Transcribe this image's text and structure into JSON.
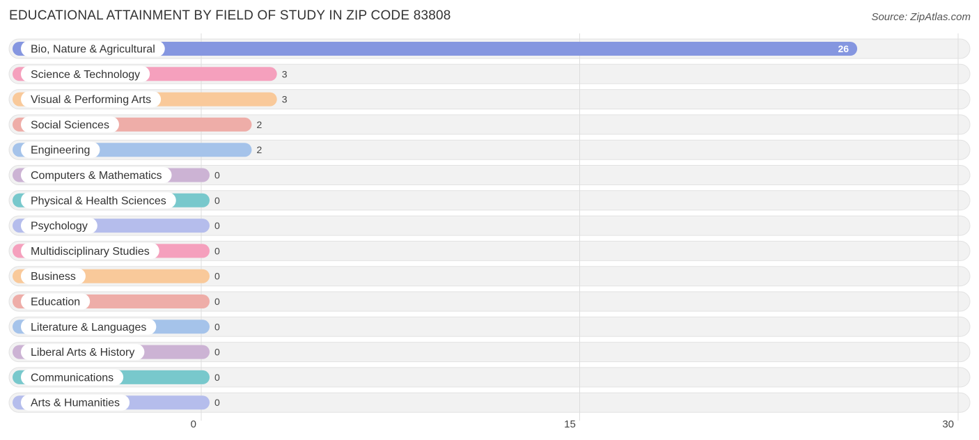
{
  "header": {
    "title": "EDUCATIONAL ATTAINMENT BY FIELD OF STUDY IN ZIP CODE 83808",
    "source": "Source: ZipAtlas.com"
  },
  "chart_data": {
    "type": "bar",
    "orientation": "horizontal",
    "title": "EDUCATIONAL ATTAINMENT BY FIELD OF STUDY IN ZIP CODE 83808",
    "xlabel": "",
    "ylabel": "",
    "xlim": [
      0,
      30
    ],
    "ticks": [
      0,
      15,
      30
    ],
    "grid": true,
    "categories": [
      "Bio, Nature & Agricultural",
      "Science & Technology",
      "Visual & Performing Arts",
      "Social Sciences",
      "Engineering",
      "Computers & Mathematics",
      "Physical & Health Sciences",
      "Psychology",
      "Multidisciplinary Studies",
      "Business",
      "Education",
      "Literature & Languages",
      "Liberal Arts & History",
      "Communications",
      "Arts & Humanities"
    ],
    "values": [
      26,
      3,
      3,
      2,
      2,
      0,
      0,
      0,
      0,
      0,
      0,
      0,
      0,
      0,
      0
    ],
    "value_labels": [
      "26",
      "3",
      "3",
      "2",
      "2",
      "0",
      "0",
      "0",
      "0",
      "0",
      "0",
      "0",
      "0",
      "0",
      "0"
    ],
    "colors": [
      "#8596e0",
      "#f5a0bd",
      "#f9c99a",
      "#eeada8",
      "#a5c3ea",
      "#ccb3d4",
      "#78c8cc",
      "#b5bdec",
      "#f5a0bd",
      "#f9c99a",
      "#eeada8",
      "#a5c3ea",
      "#ccb3d4",
      "#78c8cc",
      "#b5bdec"
    ]
  }
}
